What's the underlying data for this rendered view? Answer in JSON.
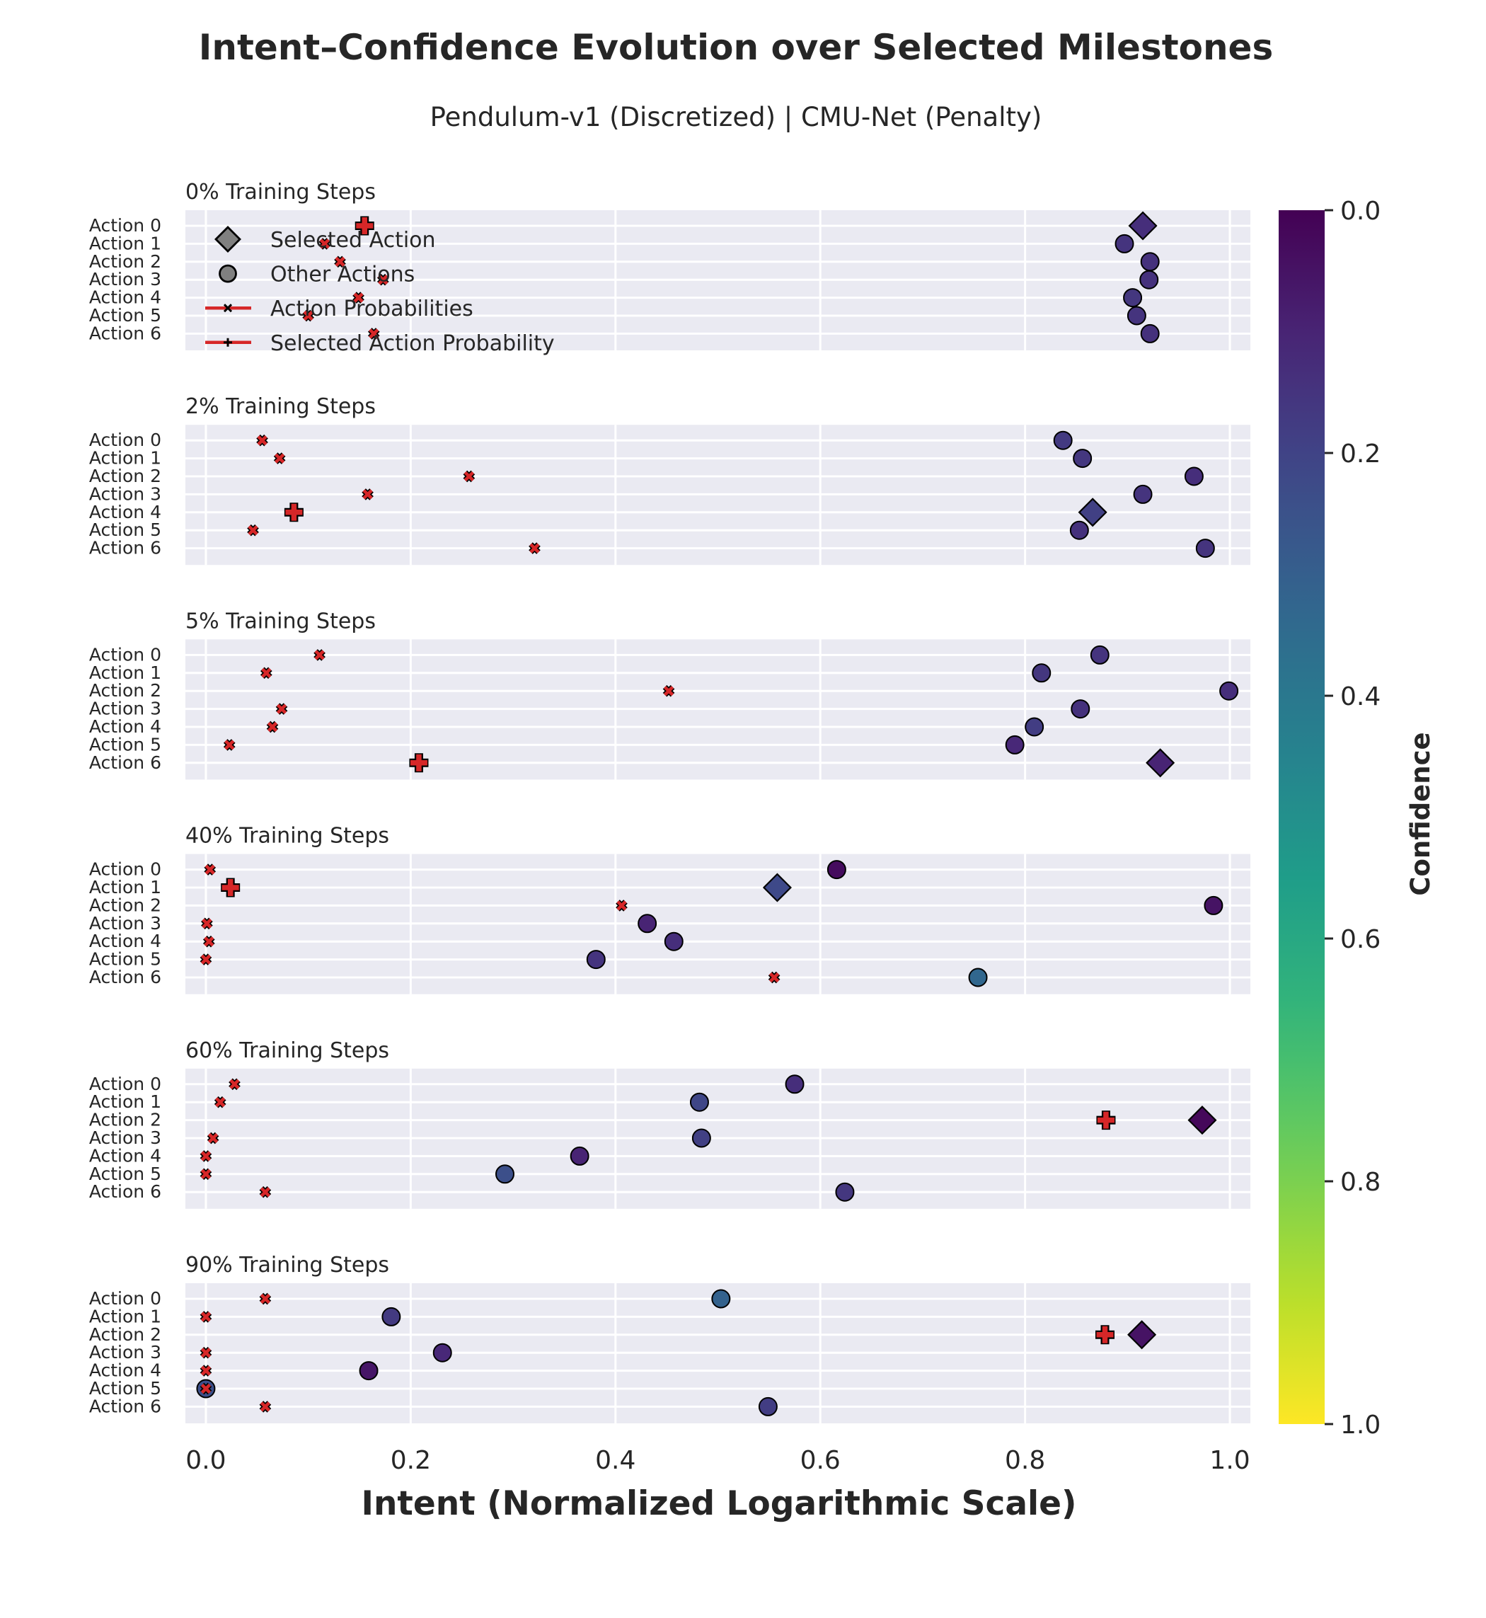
{
  "chart_data": {
    "type": "scatter",
    "title": "Intent–Confidence Evolution over Selected Milestones",
    "subtitle": "Pendulum-v1 (Discretized) | CMU-Net (Penalty)",
    "xlabel": "Intent (Normalized Logarithmic Scale)",
    "xlim": [
      -0.02,
      1.02
    ],
    "xticks": [
      "0.0",
      "0.2",
      "0.4",
      "0.6",
      "0.8",
      "1.0"
    ],
    "grid": true,
    "actions": [
      "Action 0",
      "Action 1",
      "Action 2",
      "Action 3",
      "Action 4",
      "Action 5",
      "Action 6"
    ],
    "colorbar": {
      "label": "Confidence",
      "range": [
        0.0,
        1.0
      ],
      "ticks": [
        "0.0",
        "0.2",
        "0.4",
        "0.6",
        "0.8",
        "1.0"
      ],
      "colormap": "viridis"
    },
    "legend": {
      "placement": "upper-left of first panel",
      "entries": [
        "Selected Action",
        "Other Actions",
        "Action Probabilities",
        "Selected Action Probability"
      ]
    },
    "colors": {
      "probability_marker": "#d62728",
      "panel_background": "#eaeaf2",
      "grid": "#ffffff"
    },
    "panels": [
      {
        "title": "0% Training Steps",
        "selected": 0,
        "intent": [
          0.915,
          0.897,
          0.922,
          0.921,
          0.905,
          0.909,
          0.922
        ],
        "confidence": [
          0.13,
          0.15,
          0.14,
          0.14,
          0.16,
          0.15,
          0.14
        ],
        "probability": [
          0.155,
          0.116,
          0.131,
          0.173,
          0.149,
          0.1,
          0.164
        ]
      },
      {
        "title": "2% Training Steps",
        "selected": 4,
        "intent": [
          0.837,
          0.856,
          0.965,
          0.915,
          0.866,
          0.853,
          0.976
        ],
        "confidence": [
          0.17,
          0.16,
          0.13,
          0.15,
          0.19,
          0.14,
          0.15
        ],
        "probability": [
          0.055,
          0.072,
          0.257,
          0.158,
          0.086,
          0.046,
          0.321
        ]
      },
      {
        "title": "5% Training Steps",
        "selected": 6,
        "intent": [
          0.873,
          0.816,
          0.999,
          0.854,
          0.809,
          0.79,
          0.932
        ],
        "confidence": [
          0.15,
          0.16,
          0.13,
          0.14,
          0.18,
          0.11,
          0.1
        ],
        "probability": [
          0.111,
          0.059,
          0.452,
          0.074,
          0.065,
          0.023,
          0.208
        ]
      },
      {
        "title": "40% Training Steps",
        "selected": 1,
        "intent": [
          0.616,
          0.558,
          0.984,
          0.431,
          0.457,
          0.381,
          0.754
        ],
        "confidence": [
          0.03,
          0.22,
          0.05,
          0.1,
          0.13,
          0.15,
          0.33
        ],
        "probability": [
          0.004,
          0.024,
          0.406,
          0.001,
          0.003,
          0.0,
          0.555
        ]
      },
      {
        "title": "60% Training Steps",
        "selected": 2,
        "intent": [
          0.575,
          0.482,
          0.973,
          0.484,
          0.365,
          0.292,
          0.624
        ],
        "confidence": [
          0.13,
          0.21,
          0.02,
          0.19,
          0.1,
          0.24,
          0.16
        ],
        "probability": [
          0.028,
          0.014,
          0.879,
          0.007,
          0.0,
          0.0,
          0.058
        ]
      },
      {
        "title": "90% Training Steps",
        "selected": 2,
        "intent": [
          0.503,
          0.181,
          0.914,
          0.231,
          0.159,
          0.0,
          0.549
        ],
        "confidence": [
          0.31,
          0.17,
          0.05,
          0.11,
          0.06,
          0.24,
          0.18
        ],
        "probability": [
          0.058,
          0.0,
          0.878,
          0.0,
          0.0,
          0.0,
          0.058
        ]
      }
    ]
  }
}
